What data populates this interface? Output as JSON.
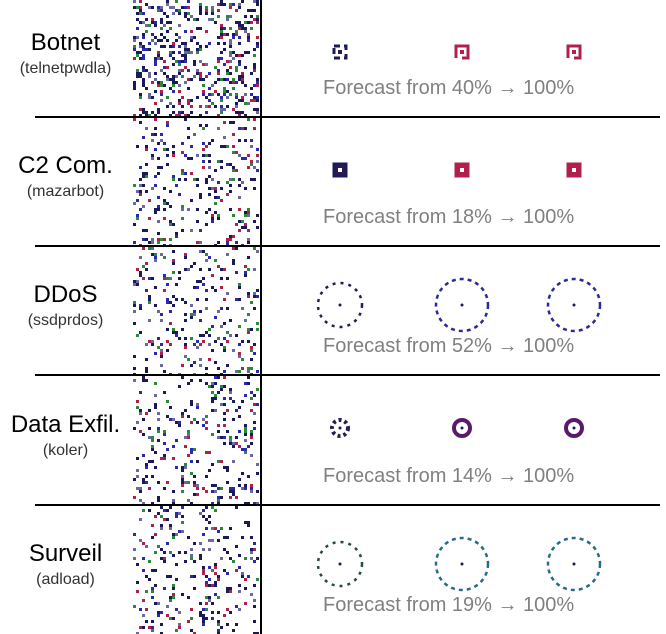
{
  "rows": [
    {
      "name": "Botnet",
      "family": "(telnetpwdla)",
      "forecast": "Forecast from 40% → 100%",
      "start_percent": 40,
      "end_percent": 100,
      "shape": "bracket",
      "color": "#b0204a"
    },
    {
      "name": "C2 Com.",
      "family": "(mazarbot)",
      "forecast": "Forecast from 18% → 100%",
      "start_percent": 18,
      "end_percent": 100,
      "shape": "square",
      "color": "#b0204a"
    },
    {
      "name": "DDoS",
      "family": "(ssdprdos)",
      "forecast": "Forecast from 52% → 100%",
      "start_percent": 52,
      "end_percent": 100,
      "shape": "big-ring",
      "color": "#2a2a9a"
    },
    {
      "name": "Data Exfil.",
      "family": "(koler)",
      "forecast": "Forecast from 14% → 100%",
      "start_percent": 14,
      "end_percent": 100,
      "shape": "small-ring",
      "color": "#5a1a6a"
    },
    {
      "name": "Surveil",
      "family": "(adload)",
      "forecast": "Forecast from 19% → 100%",
      "start_percent": 19,
      "end_percent": 100,
      "shape": "green-ring",
      "color": "#2a8a6a"
    }
  ]
}
